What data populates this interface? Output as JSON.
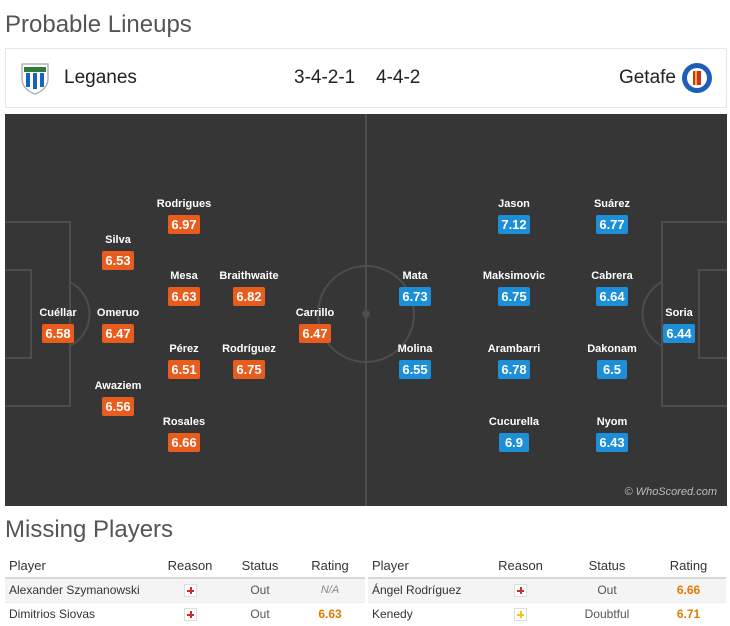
{
  "lineups": {
    "title": "Probable Lineups",
    "home": {
      "name": "Leganes",
      "formation": "3-4-2-1",
      "crest_icon": "leganes-crest-icon",
      "color": "#e85d1d"
    },
    "away": {
      "name": "Getafe",
      "formation": "4-4-2",
      "crest_icon": "getafe-crest-icon",
      "color": "#1d8fd8"
    },
    "watermark": "© WhoScored.com",
    "home_players": [
      {
        "name": "Cuéllar",
        "rating": "6.58"
      },
      {
        "name": "Silva",
        "rating": "6.53"
      },
      {
        "name": "Omeruo",
        "rating": "6.47"
      },
      {
        "name": "Awaziem",
        "rating": "6.56"
      },
      {
        "name": "Rodrigues",
        "rating": "6.97"
      },
      {
        "name": "Mesa",
        "rating": "6.63"
      },
      {
        "name": "Pérez",
        "rating": "6.51"
      },
      {
        "name": "Rosales",
        "rating": "6.66"
      },
      {
        "name": "Braithwaite",
        "rating": "6.82"
      },
      {
        "name": "Rodríguez",
        "rating": "6.75"
      },
      {
        "name": "Carrillo",
        "rating": "6.47"
      }
    ],
    "away_players": [
      {
        "name": "Soria",
        "rating": "6.44"
      },
      {
        "name": "Suárez",
        "rating": "6.77"
      },
      {
        "name": "Cabrera",
        "rating": "6.64"
      },
      {
        "name": "Dakonam",
        "rating": "6.5"
      },
      {
        "name": "Nyom",
        "rating": "6.43"
      },
      {
        "name": "Jason",
        "rating": "7.12"
      },
      {
        "name": "Maksimovic",
        "rating": "6.75"
      },
      {
        "name": "Arambarri",
        "rating": "6.78"
      },
      {
        "name": "Cucurella",
        "rating": "6.9"
      },
      {
        "name": "Mata",
        "rating": "6.73"
      },
      {
        "name": "Molina",
        "rating": "6.55"
      }
    ]
  },
  "missing": {
    "title": "Missing Players",
    "headers": {
      "player": "Player",
      "reason": "Reason",
      "status": "Status",
      "rating": "Rating"
    },
    "home": [
      {
        "player": "Alexander Szymanowski",
        "reason_icon": "injury-icon",
        "status": "Out",
        "rating": "N/A"
      },
      {
        "player": "Dimitrios Siovas",
        "reason_icon": "injury-icon",
        "status": "Out",
        "rating": "6.63"
      }
    ],
    "away": [
      {
        "player": "Ángel Rodríguez",
        "reason_icon": "injury-icon",
        "status": "Out",
        "rating": "6.66"
      },
      {
        "player": "Kenedy",
        "reason_icon": "doubtful-injury-icon",
        "status": "Doubtful",
        "rating": "6.71"
      }
    ]
  }
}
